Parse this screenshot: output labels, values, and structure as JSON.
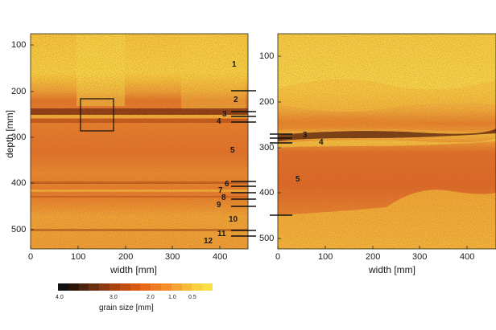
{
  "left_panel": {
    "ylabel": "depth [mm]",
    "xlabel": "width [mm]",
    "depth_ticks": [
      "100",
      "200",
      "300",
      "400",
      "500"
    ],
    "width_ticks": [
      "0",
      "100",
      "200",
      "300",
      "400"
    ],
    "layer_labels": [
      "1",
      "2",
      "3",
      "4",
      "5",
      "6",
      "7",
      "8",
      "9",
      "10",
      "11",
      "12"
    ]
  },
  "right_panel": {
    "xlabel": "width [mm]",
    "depth_ticks": [
      "100",
      "200",
      "300",
      "400",
      "500"
    ],
    "width_ticks": [
      "0",
      "100",
      "200",
      "300",
      "400"
    ],
    "layer_labels": [
      "3",
      "4",
      "5"
    ]
  },
  "colorbar": {
    "title": "grain size [mm]",
    "tick_labels": [
      "4.0",
      "3.0",
      "2.0",
      "1.0",
      "0.5"
    ],
    "colors": [
      "#111111",
      "#2a1408",
      "#4a2410",
      "#6a2e10",
      "#8a3a12",
      "#a8420f",
      "#c24d10",
      "#d85a12",
      "#e8691a",
      "#f07a22",
      "#f58e2a",
      "#f7a532",
      "#f8bb38",
      "#f9d03e",
      "#fae046"
    ]
  },
  "colors": {
    "light": "#f7d84a",
    "medium": "#f0a43a",
    "dark": "#c8521a",
    "darkest": "#5a1a08"
  }
}
